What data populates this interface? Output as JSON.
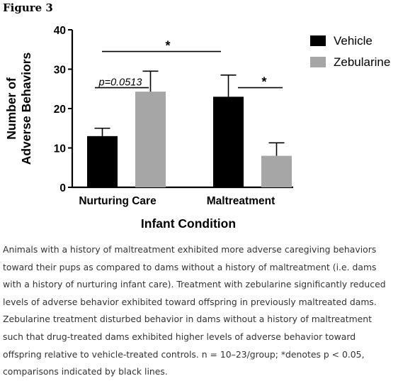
{
  "figure": {
    "title": "Figure 3",
    "caption": "Animals with a history of maltreatment exhibited more adverse caregiving behaviors toward their pups as compared to dams without a history of maltreatment (i.e. dams with a history of nurturing infant care). Treatment with zebularine significantly reduced levels of adverse behavior exhibited toward offspring in previously maltreated dams. Zebularine treatment disturbed behavior in dams without a history of maltreatment such that drug-treated dams exhibited higher levels of adverse behavior toward offspring relative to vehicle-treated controls. n = 10–23/group; *denotes p < 0.05, comparisons indicated by black lines."
  },
  "chart_data": {
    "type": "bar",
    "categories": [
      "Nurturing Care",
      "Maltreatment"
    ],
    "series": [
      {
        "name": "Vehicle",
        "color": "#000000",
        "values": [
          13,
          23
        ],
        "error": [
          2,
          5.5
        ]
      },
      {
        "name": "Zebularine",
        "color": "#a6a6a6",
        "values": [
          24.3,
          8
        ],
        "error": [
          5.2,
          3.3
        ]
      }
    ],
    "xlabel": "Infant Condition",
    "ylabel_lines": [
      "Number of",
      "Adverse Behaviors"
    ],
    "ylim": [
      0,
      40
    ],
    "yticks": [
      0,
      10,
      20,
      30,
      40
    ],
    "legend_position": "top-right",
    "annotations": [
      {
        "label": "*",
        "kind": "between-groups",
        "from": "Nurturing Care",
        "to": "Maltreatment",
        "at_value": 34.5
      },
      {
        "label": "p=0.0513",
        "kind": "within-group",
        "category": "Nurturing Care",
        "at_value": 25.3
      },
      {
        "label": "*",
        "kind": "within-group",
        "category": "Maltreatment",
        "at_value": 25.3
      }
    ]
  }
}
